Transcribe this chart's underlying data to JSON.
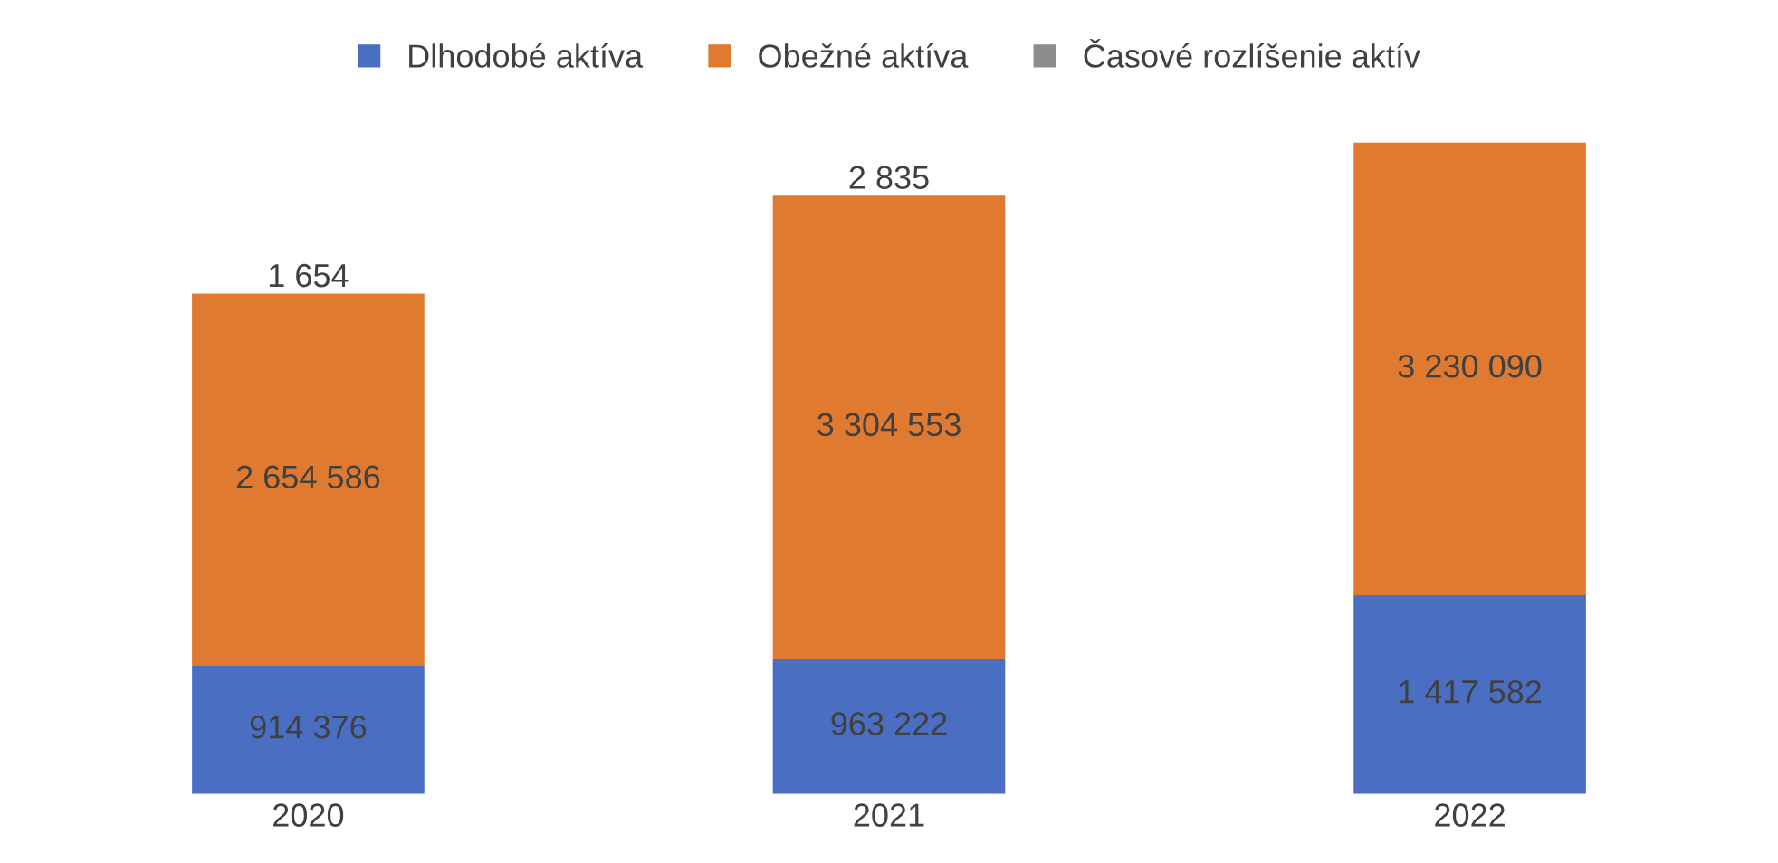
{
  "chart_data": {
    "type": "bar",
    "stacked": true,
    "data_labels": true,
    "legend": "top",
    "grid": false,
    "categories": [
      "2020",
      "2021",
      "2022"
    ],
    "series": [
      {
        "name": "Dlhodobé aktíva",
        "color": "#4a6fc2",
        "values": [
          914376,
          963222,
          1417582
        ]
      },
      {
        "name": "Obežné aktíva",
        "color": "#df7a30",
        "values": [
          2654586,
          3304553,
          3230090
        ]
      },
      {
        "name": "Časové rozlíšenie aktív",
        "color": "#8c8c8c",
        "values": [
          1654,
          2835,
          null
        ]
      }
    ]
  }
}
